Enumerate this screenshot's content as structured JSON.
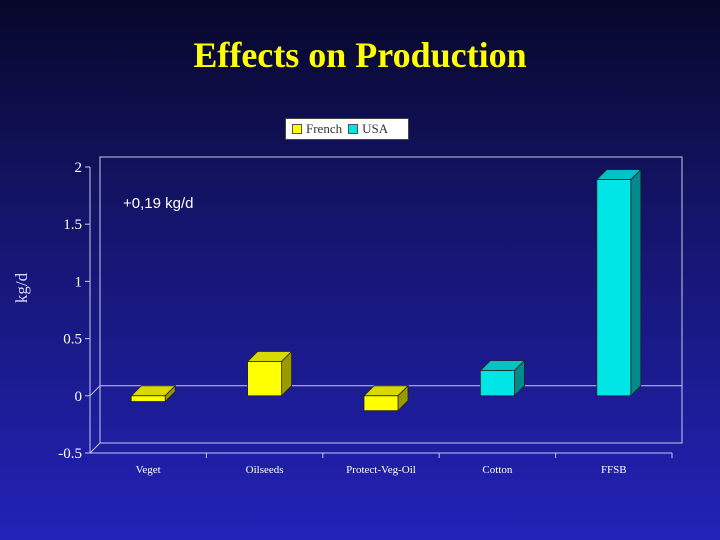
{
  "slide": {
    "title": "Effects on Production"
  },
  "annotation": "+0,19 kg/d",
  "colors": {
    "french": "#ffff00",
    "usa": "#00e6e6",
    "title": "#ffff00"
  },
  "chart_data": {
    "type": "bar",
    "title": "",
    "xlabel": "",
    "ylabel": "kg/d",
    "ylim": [
      -0.5,
      2
    ],
    "yticks": [
      -0.5,
      0,
      0.5,
      1,
      1.5,
      2
    ],
    "ytick_labels": [
      "-0.5",
      "0",
      "0.5",
      "1",
      "1.5",
      "2"
    ],
    "categories": [
      "Veget",
      "Oilseeds",
      "Protect-Veg-Oil",
      "Cotton",
      "FFSB"
    ],
    "series": [
      {
        "name": "French",
        "color": "#ffff00",
        "values": [
          -0.05,
          0.3,
          -0.13,
          null,
          null
        ]
      },
      {
        "name": "USA",
        "color": "#00e6e6",
        "values": [
          null,
          null,
          null,
          0.22,
          1.89
        ]
      }
    ],
    "legend_position": "top-center",
    "grid": false
  }
}
